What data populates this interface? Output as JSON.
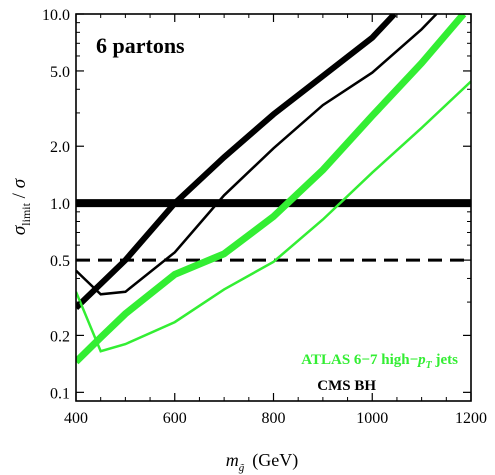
{
  "chart_data": {
    "type": "line",
    "x_axis": {
      "label_main": "m",
      "label_sub": "g̃",
      "label_unit": "(GeV)",
      "range": [
        400,
        1200
      ],
      "ticks": [
        400,
        600,
        800,
        1000,
        1200
      ],
      "tick_labels": [
        "400",
        "600",
        "800",
        "1000",
        "1200"
      ]
    },
    "y_axis": {
      "label_sigma": "σ",
      "label_sub": "limit",
      "label_sep": " / ",
      "label_denom": "σ",
      "scale": "log",
      "range": [
        0.09,
        10.0
      ],
      "ticks": [
        0.1,
        0.2,
        0.5,
        1.0,
        2.0,
        5.0,
        10.0
      ],
      "tick_labels": [
        "0.1",
        "0.2",
        "0.5",
        "1.0",
        "2.0",
        "5.0",
        "10.0"
      ]
    },
    "annotations": {
      "panel_label": "6 partons",
      "atlas_label_main": "ATLAS 6−7 high−",
      "atlas_label_p": "p",
      "atlas_label_sub": "T",
      "atlas_label_end": " jets",
      "cms_label": "CMS BH"
    },
    "colors": {
      "atlas": "#33ee33",
      "cms": "#000000"
    },
    "reference_lines": [
      {
        "y": 1.0,
        "style": "solid",
        "color": "#000000"
      },
      {
        "y": 0.5,
        "style": "dashed",
        "color": "#000000"
      }
    ],
    "series": [
      {
        "group": "cms",
        "weight": "thick",
        "color": "#000000",
        "x": [
          400,
          500,
          600,
          700,
          800,
          900,
          1000,
          1045
        ],
        "y": [
          0.28,
          0.5,
          1.0,
          1.75,
          2.95,
          4.7,
          7.5,
          10.0
        ]
      },
      {
        "group": "cms",
        "weight": "thin",
        "color": "#000000",
        "x": [
          400,
          430,
          450,
          500,
          600,
          700,
          800,
          900,
          1000,
          1100,
          1130
        ],
        "y": [
          0.44,
          0.37,
          0.33,
          0.34,
          0.55,
          1.1,
          1.95,
          3.3,
          4.9,
          8.3,
          10.0
        ]
      },
      {
        "group": "atlas",
        "weight": "thick",
        "color": "#33ee33",
        "x": [
          400,
          450,
          500,
          600,
          700,
          800,
          900,
          1000,
          1100,
          1185
        ],
        "y": [
          0.145,
          0.195,
          0.26,
          0.42,
          0.54,
          0.85,
          1.5,
          2.9,
          5.5,
          10.0
        ]
      },
      {
        "group": "atlas",
        "weight": "thin",
        "color": "#33ee33",
        "x": [
          400,
          450,
          500,
          600,
          700,
          800,
          900,
          1000,
          1100,
          1200
        ],
        "y": [
          0.34,
          0.165,
          0.18,
          0.235,
          0.35,
          0.49,
          0.82,
          1.45,
          2.5,
          4.4
        ]
      }
    ]
  }
}
